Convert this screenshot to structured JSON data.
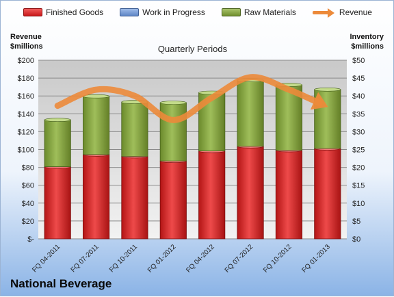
{
  "chart_data": {
    "type": "bar",
    "title": "Quarterly Periods",
    "company": "National Beverage",
    "left_axis_title": [
      "Revenue",
      "$millions"
    ],
    "right_axis_title": [
      "Inventory",
      "$millions"
    ],
    "categories": [
      "FQ 04-2011",
      "FQ 07-2011",
      "FQ 10-2011",
      "FQ 01-2012",
      "FQ 04-2012",
      "FQ 07-2012",
      "FQ 10-2012",
      "FQ 01-2013"
    ],
    "y_left": {
      "ylim": [
        0,
        200
      ],
      "ticks": [
        "$-",
        "$20",
        "$40",
        "$60",
        "$80",
        "$100",
        "$120",
        "$140",
        "$160",
        "$180",
        "$200"
      ]
    },
    "y_right": {
      "ylim": [
        0,
        50
      ],
      "ticks": [
        "$0",
        "$5",
        "$10",
        "$15",
        "$20",
        "$25",
        "$30",
        "$35",
        "$40",
        "$45",
        "$50"
      ]
    },
    "series": [
      {
        "name": "Finished Goods",
        "type": "bar",
        "axis": "right",
        "color": "#d42a2a",
        "values": [
          20.2,
          23.6,
          23.1,
          21.8,
          24.6,
          25.9,
          24.8,
          25.3
        ]
      },
      {
        "name": "Work in Progress",
        "type": "bar",
        "axis": "right",
        "color": "#6f93d1",
        "values": [
          0,
          0,
          0,
          0,
          0,
          0,
          0,
          0
        ]
      },
      {
        "name": "Raw Materials",
        "type": "bar",
        "axis": "right",
        "color": "#86a63c",
        "values": [
          13.1,
          16.3,
          15.2,
          16.3,
          16.3,
          18.5,
          18.3,
          16.5
        ]
      },
      {
        "name": "Revenue",
        "type": "line",
        "axis": "left",
        "color": "#ec8a3a",
        "values": [
          149,
          167,
          160,
          133,
          158,
          181,
          167,
          152
        ]
      }
    ],
    "grid": true,
    "legend_position": "top"
  }
}
